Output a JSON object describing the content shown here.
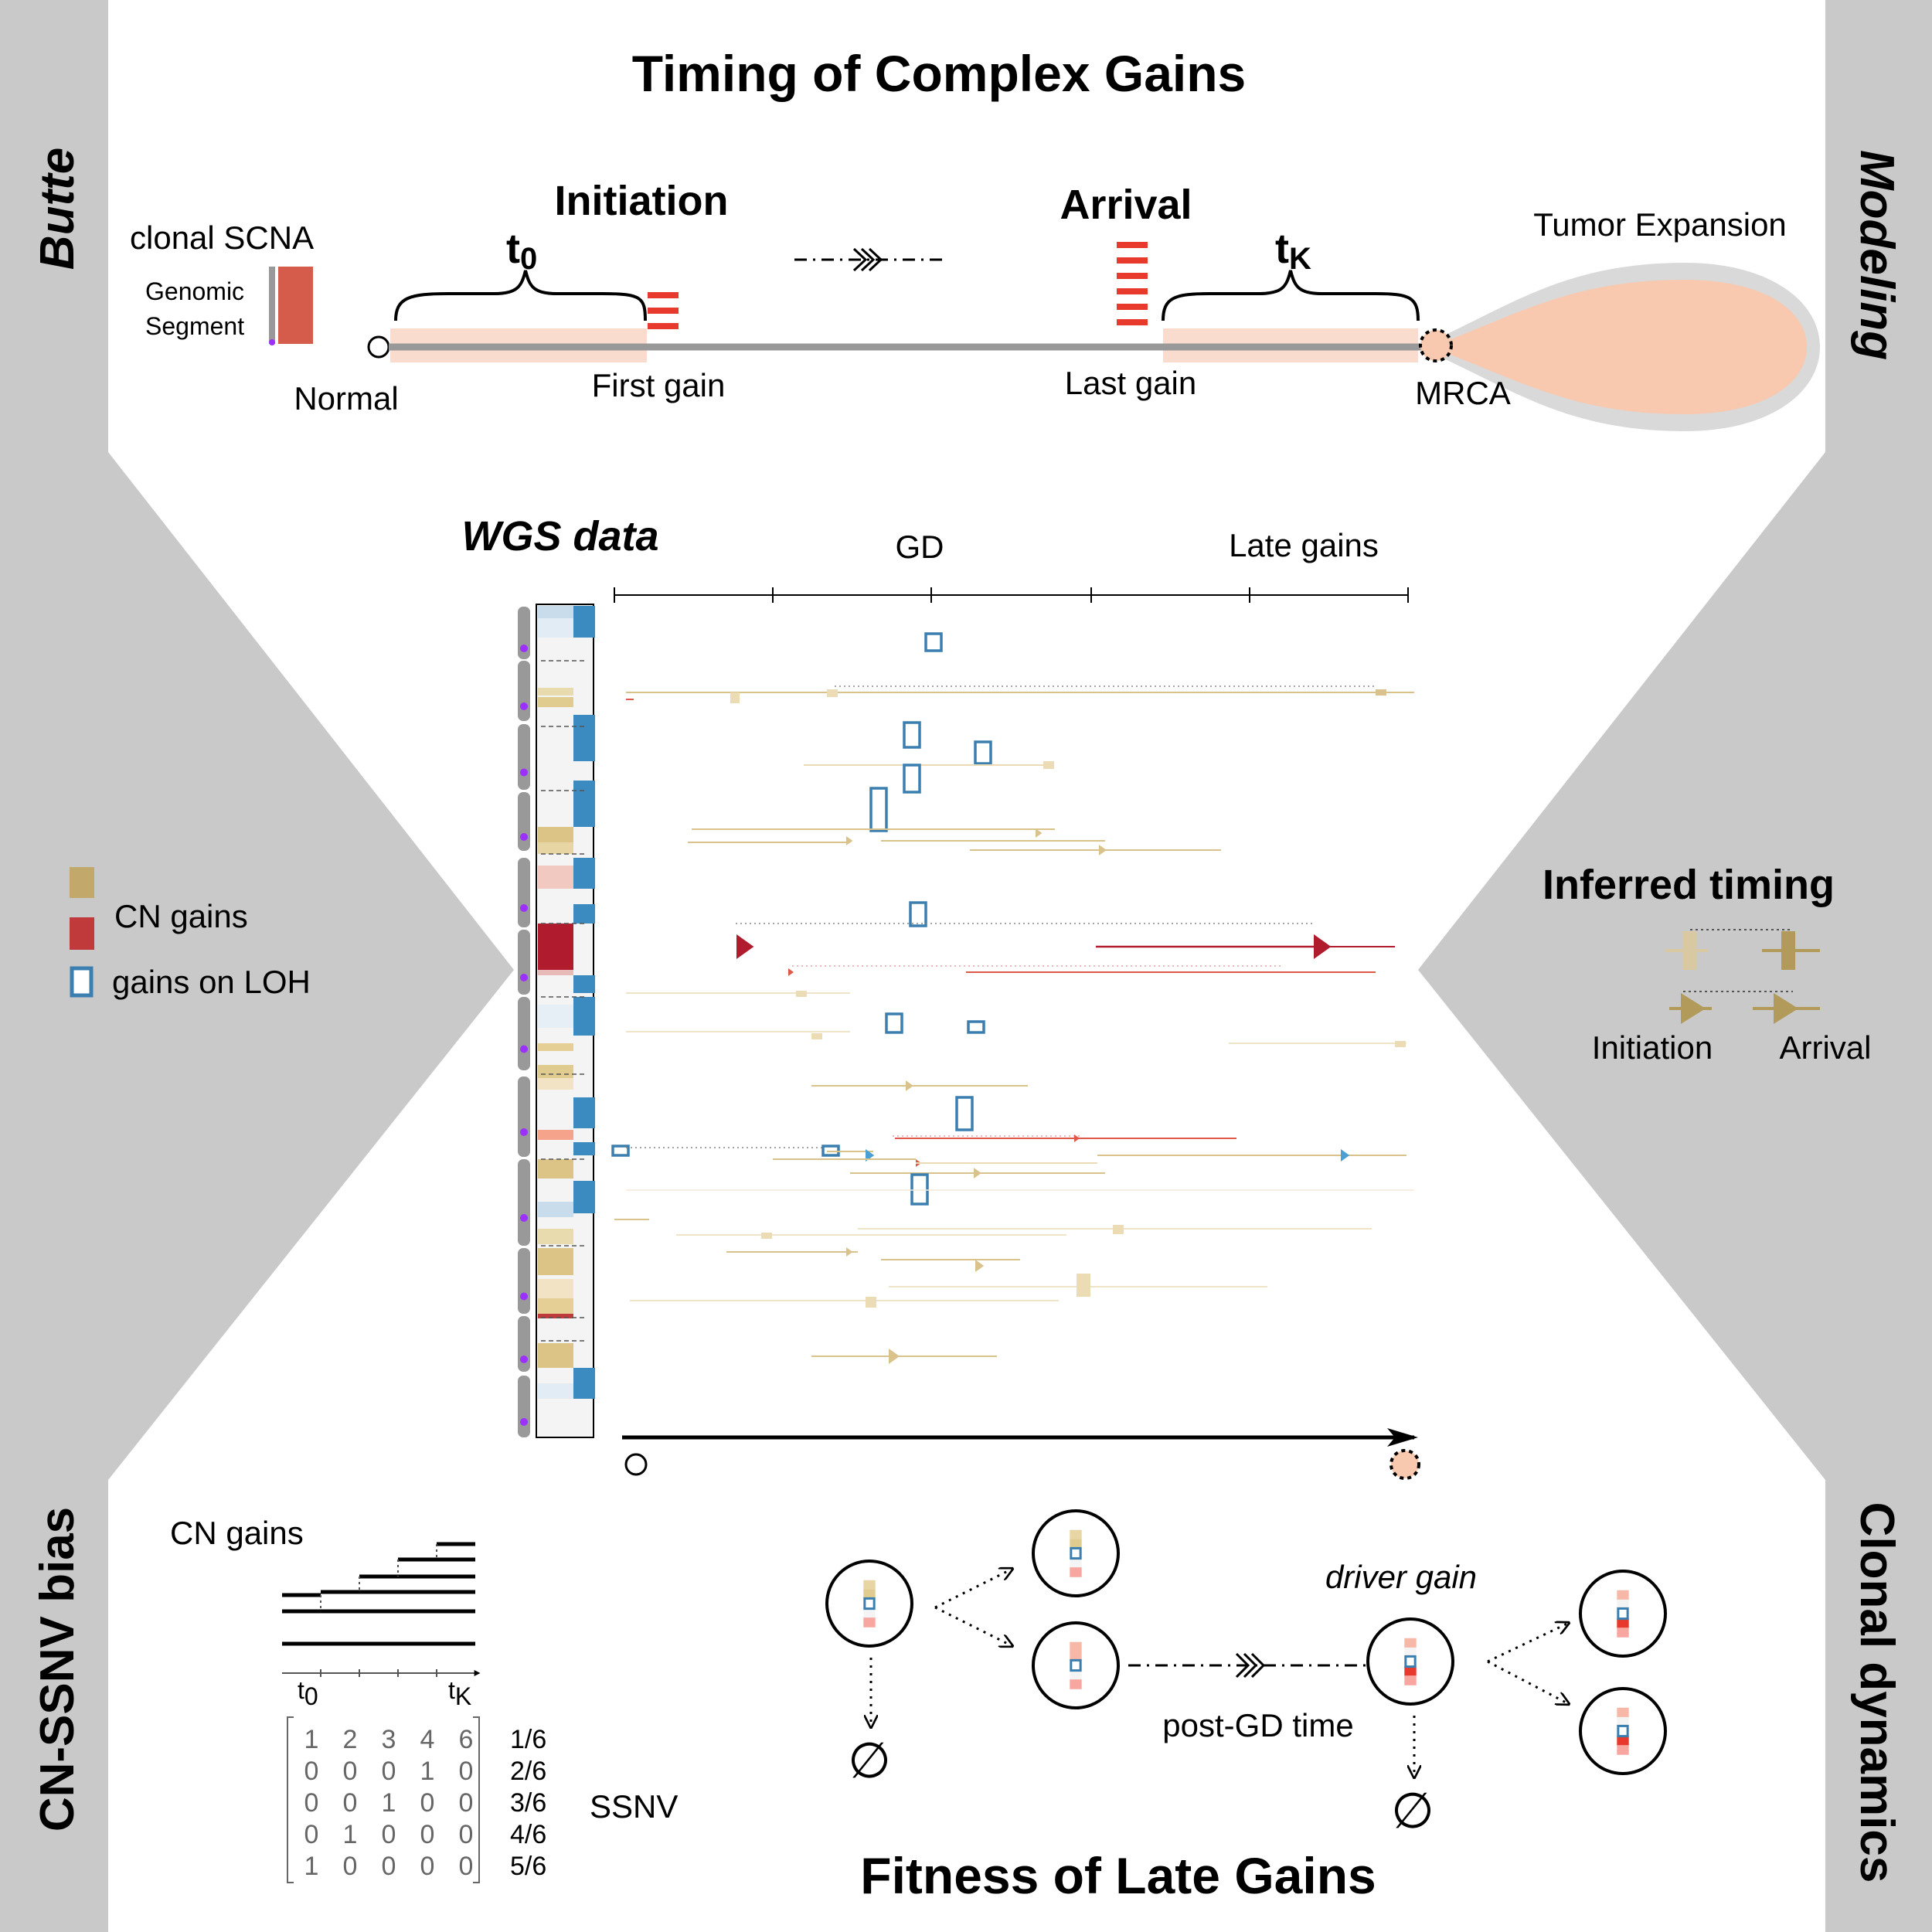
{
  "titles": {
    "top": "Timing of Complex Gains",
    "bottom": "Fitness of Late Gains"
  },
  "side_labels": {
    "top_left": "Butte",
    "top_right": "Modeling",
    "bottom_left": "CN-SSNV bias",
    "bottom_right": "Clonal dynamics"
  },
  "timeline": {
    "clonal_scna": "clonal SCNA",
    "genomic": "Genomic",
    "segment": "Segment",
    "initiation": "Initiation",
    "arrival": "Arrival",
    "t0": "t",
    "t0_sub": "0",
    "tk": "t",
    "tk_sub": "K",
    "normal": "Normal",
    "first_gain": "First gain",
    "last_gain": "Last gain",
    "mrca": "MRCA",
    "tumor_expansion": "Tumor Expansion"
  },
  "wgs": {
    "title": "WGS data",
    "gd": "GD",
    "late_gains": "Late gains"
  },
  "legend": {
    "cn_gains": "CN gains",
    "gains_on_loh": "gains on LOH",
    "colors": {
      "cn_gain": "#c2a86a",
      "red_gain": "#c0393b",
      "loh": "#3b7fb0"
    }
  },
  "inferred": {
    "title": "Inferred timing",
    "initiation": "Initiation",
    "arrival": "Arrival"
  },
  "bias": {
    "cn_gains": "CN gains",
    "t0": "t",
    "t0_sub": "0",
    "tk": "t",
    "tk_sub": "K",
    "matrix": [
      [
        "1",
        "2",
        "3",
        "4",
        "6"
      ],
      [
        "0",
        "0",
        "0",
        "1",
        "0"
      ],
      [
        "0",
        "0",
        "1",
        "0",
        "0"
      ],
      [
        "0",
        "1",
        "0",
        "0",
        "0"
      ],
      [
        "1",
        "0",
        "0",
        "0",
        "0"
      ]
    ],
    "fractions": [
      "1/6",
      "2/6",
      "3/6",
      "4/6",
      "5/6"
    ],
    "ssnv": "SSNV"
  },
  "dynamics": {
    "driver_gain": "driver gain",
    "post_gd_time": "post-GD time",
    "empty_set": "∅"
  }
}
